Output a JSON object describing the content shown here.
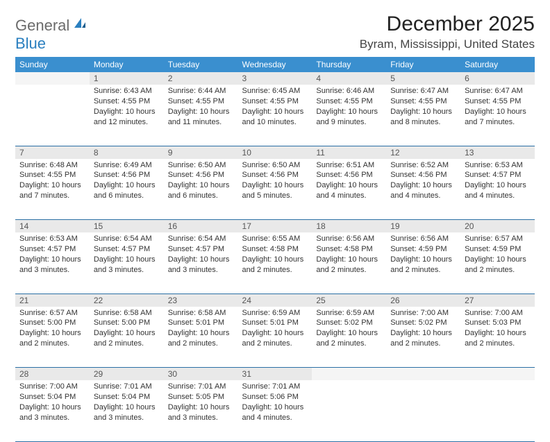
{
  "logo": {
    "word1": "General",
    "word2": "Blue"
  },
  "header": {
    "title": "December 2025",
    "location": "Byram, Mississippi, United States"
  },
  "styling": {
    "header_bg": "#3a8fcf",
    "header_fg": "#ffffff",
    "daynum_bg": "#e9e9e9",
    "rule_color": "#2a6fa5",
    "title_fontsize": 30,
    "location_fontsize": 17,
    "th_fontsize": 12,
    "cell_fontsize": 11
  },
  "weekdays": [
    "Sunday",
    "Monday",
    "Tuesday",
    "Wednesday",
    "Thursday",
    "Friday",
    "Saturday"
  ],
  "weeks": [
    [
      null,
      {
        "n": "1",
        "sunrise": "6:43 AM",
        "sunset": "4:55 PM",
        "daylight": "10 hours and 12 minutes."
      },
      {
        "n": "2",
        "sunrise": "6:44 AM",
        "sunset": "4:55 PM",
        "daylight": "10 hours and 11 minutes."
      },
      {
        "n": "3",
        "sunrise": "6:45 AM",
        "sunset": "4:55 PM",
        "daylight": "10 hours and 10 minutes."
      },
      {
        "n": "4",
        "sunrise": "6:46 AM",
        "sunset": "4:55 PM",
        "daylight": "10 hours and 9 minutes."
      },
      {
        "n": "5",
        "sunrise": "6:47 AM",
        "sunset": "4:55 PM",
        "daylight": "10 hours and 8 minutes."
      },
      {
        "n": "6",
        "sunrise": "6:47 AM",
        "sunset": "4:55 PM",
        "daylight": "10 hours and 7 minutes."
      }
    ],
    [
      {
        "n": "7",
        "sunrise": "6:48 AM",
        "sunset": "4:55 PM",
        "daylight": "10 hours and 7 minutes."
      },
      {
        "n": "8",
        "sunrise": "6:49 AM",
        "sunset": "4:56 PM",
        "daylight": "10 hours and 6 minutes."
      },
      {
        "n": "9",
        "sunrise": "6:50 AM",
        "sunset": "4:56 PM",
        "daylight": "10 hours and 6 minutes."
      },
      {
        "n": "10",
        "sunrise": "6:50 AM",
        "sunset": "4:56 PM",
        "daylight": "10 hours and 5 minutes."
      },
      {
        "n": "11",
        "sunrise": "6:51 AM",
        "sunset": "4:56 PM",
        "daylight": "10 hours and 4 minutes."
      },
      {
        "n": "12",
        "sunrise": "6:52 AM",
        "sunset": "4:56 PM",
        "daylight": "10 hours and 4 minutes."
      },
      {
        "n": "13",
        "sunrise": "6:53 AM",
        "sunset": "4:57 PM",
        "daylight": "10 hours and 4 minutes."
      }
    ],
    [
      {
        "n": "14",
        "sunrise": "6:53 AM",
        "sunset": "4:57 PM",
        "daylight": "10 hours and 3 minutes."
      },
      {
        "n": "15",
        "sunrise": "6:54 AM",
        "sunset": "4:57 PM",
        "daylight": "10 hours and 3 minutes."
      },
      {
        "n": "16",
        "sunrise": "6:54 AM",
        "sunset": "4:57 PM",
        "daylight": "10 hours and 3 minutes."
      },
      {
        "n": "17",
        "sunrise": "6:55 AM",
        "sunset": "4:58 PM",
        "daylight": "10 hours and 2 minutes."
      },
      {
        "n": "18",
        "sunrise": "6:56 AM",
        "sunset": "4:58 PM",
        "daylight": "10 hours and 2 minutes."
      },
      {
        "n": "19",
        "sunrise": "6:56 AM",
        "sunset": "4:59 PM",
        "daylight": "10 hours and 2 minutes."
      },
      {
        "n": "20",
        "sunrise": "6:57 AM",
        "sunset": "4:59 PM",
        "daylight": "10 hours and 2 minutes."
      }
    ],
    [
      {
        "n": "21",
        "sunrise": "6:57 AM",
        "sunset": "5:00 PM",
        "daylight": "10 hours and 2 minutes."
      },
      {
        "n": "22",
        "sunrise": "6:58 AM",
        "sunset": "5:00 PM",
        "daylight": "10 hours and 2 minutes."
      },
      {
        "n": "23",
        "sunrise": "6:58 AM",
        "sunset": "5:01 PM",
        "daylight": "10 hours and 2 minutes."
      },
      {
        "n": "24",
        "sunrise": "6:59 AM",
        "sunset": "5:01 PM",
        "daylight": "10 hours and 2 minutes."
      },
      {
        "n": "25",
        "sunrise": "6:59 AM",
        "sunset": "5:02 PM",
        "daylight": "10 hours and 2 minutes."
      },
      {
        "n": "26",
        "sunrise": "7:00 AM",
        "sunset": "5:02 PM",
        "daylight": "10 hours and 2 minutes."
      },
      {
        "n": "27",
        "sunrise": "7:00 AM",
        "sunset": "5:03 PM",
        "daylight": "10 hours and 2 minutes."
      }
    ],
    [
      {
        "n": "28",
        "sunrise": "7:00 AM",
        "sunset": "5:04 PM",
        "daylight": "10 hours and 3 minutes."
      },
      {
        "n": "29",
        "sunrise": "7:01 AM",
        "sunset": "5:04 PM",
        "daylight": "10 hours and 3 minutes."
      },
      {
        "n": "30",
        "sunrise": "7:01 AM",
        "sunset": "5:05 PM",
        "daylight": "10 hours and 3 minutes."
      },
      {
        "n": "31",
        "sunrise": "7:01 AM",
        "sunset": "5:06 PM",
        "daylight": "10 hours and 4 minutes."
      },
      null,
      null,
      null
    ]
  ],
  "labels": {
    "sunrise": "Sunrise: ",
    "sunset": "Sunset: ",
    "daylight": "Daylight: "
  }
}
